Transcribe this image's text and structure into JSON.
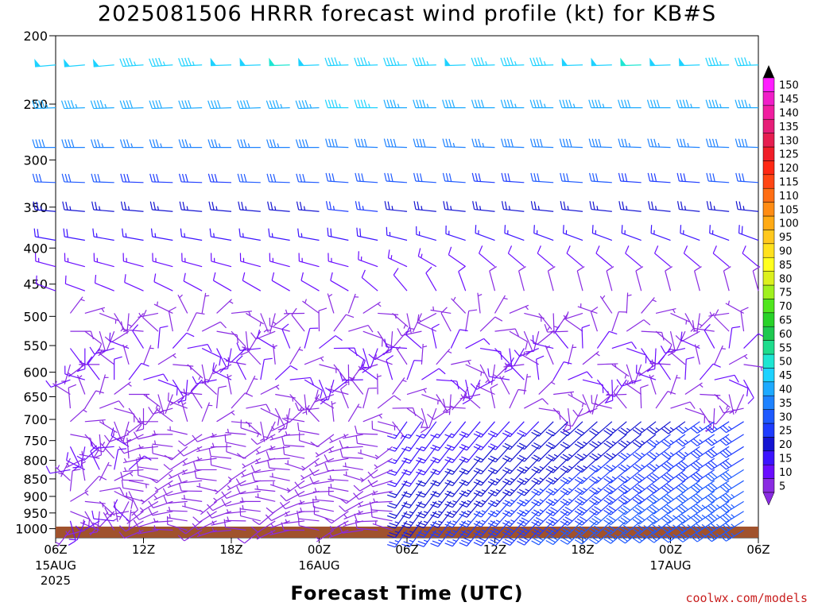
{
  "title": "2025081506 HRRR forecast wind profile (kt) for KB#S",
  "credit": "coolwx.com/models",
  "chart_data": {
    "type": "wind_barb_time_height",
    "xlabel": "Forecast Time (UTC)",
    "ylabel": "",
    "x_range_hours": [
      0,
      48
    ],
    "x_ticks": [
      {
        "hour": 0,
        "label": "06Z",
        "date": "15AUG",
        "year": "2025"
      },
      {
        "hour": 6,
        "label": "12Z"
      },
      {
        "hour": 12,
        "label": "18Z"
      },
      {
        "hour": 18,
        "label": "00Z",
        "date": "16AUG"
      },
      {
        "hour": 24,
        "label": "06Z"
      },
      {
        "hour": 30,
        "label": "12Z"
      },
      {
        "hour": 36,
        "label": "18Z"
      },
      {
        "hour": 42,
        "label": "00Z",
        "date": "17AUG"
      },
      {
        "hour": 48,
        "label": "06Z"
      }
    ],
    "y_ticks_hpa": [
      200,
      250,
      300,
      350,
      400,
      450,
      500,
      550,
      600,
      650,
      700,
      750,
      800,
      850,
      900,
      950,
      1000
    ],
    "y_range_hpa": [
      200,
      1030
    ],
    "y_scale": "log",
    "colorbar": {
      "labels": [
        5,
        10,
        15,
        20,
        25,
        30,
        35,
        40,
        45,
        50,
        55,
        60,
        65,
        70,
        75,
        80,
        85,
        90,
        95,
        100,
        105,
        110,
        115,
        120,
        125,
        130,
        135,
        140,
        145,
        150
      ],
      "colors": [
        "#8a2be2",
        "#6a0dff",
        "#3c14ff",
        "#1414d2",
        "#1e3cff",
        "#1e5aff",
        "#1e82ff",
        "#1eaaff",
        "#1ed2ff",
        "#1ee6d2",
        "#1edc8c",
        "#1ec850",
        "#28d228",
        "#50e61e",
        "#a0f01e",
        "#dcf01e",
        "#ffff1e",
        "#ffe11e",
        "#ffc81e",
        "#ffaa14",
        "#ff8c14",
        "#ff6e14",
        "#ff4614",
        "#ff2814",
        "#f01e28",
        "#e61e50",
        "#e61e78",
        "#f01ea0",
        "#f01ec8",
        "#ff1eff"
      ]
    },
    "ground_color": "#a0522d",
    "series": [
      {
        "level_hpa": 220,
        "speeds_kt": [
          48,
          49,
          48,
          47,
          46,
          47,
          48,
          49,
          50,
          48,
          47,
          46,
          45,
          47,
          48,
          47,
          46,
          47,
          48,
          49,
          50,
          49,
          48,
          47,
          46
        ],
        "dirs_deg": [
          265,
          265,
          265,
          266,
          266,
          267,
          268,
          268,
          268,
          268,
          268,
          268,
          268,
          268,
          268,
          268,
          268,
          268,
          268,
          268,
          268,
          268,
          268,
          268,
          268
        ]
      },
      {
        "level_hpa": 253,
        "speeds_kt": [
          44,
          44,
          43,
          42,
          42,
          41,
          41,
          42,
          43,
          44,
          45,
          45,
          44,
          43,
          42,
          42,
          43,
          43,
          44,
          43,
          42,
          42,
          43,
          43,
          44
        ],
        "dirs_deg": [
          268,
          268,
          268,
          268,
          268,
          268,
          268,
          268,
          268,
          268,
          270,
          270,
          270,
          270,
          270,
          270,
          270,
          270,
          270,
          270,
          270,
          270,
          270,
          270,
          270
        ]
      },
      {
        "level_hpa": 288,
        "speeds_kt": [
          38,
          38,
          37,
          37,
          37,
          37,
          36,
          36,
          37,
          38,
          39,
          39,
          38,
          38,
          37,
          37,
          38,
          38,
          38,
          38,
          37,
          37,
          37,
          38,
          38
        ],
        "dirs_deg": [
          270,
          270,
          270,
          270,
          270,
          270,
          270,
          270,
          270,
          270,
          272,
          272,
          272,
          272,
          272,
          272,
          272,
          272,
          272,
          272,
          272,
          272,
          272,
          272,
          272
        ]
      },
      {
        "level_hpa": 323,
        "speeds_kt": [
          30,
          30,
          30,
          29,
          29,
          29,
          29,
          30,
          30,
          31,
          31,
          30,
          30,
          30,
          30,
          29,
          29,
          30,
          30,
          30,
          29,
          29,
          29,
          30,
          30
        ],
        "dirs_deg": [
          272,
          272,
          272,
          272,
          272,
          272,
          272,
          272,
          272,
          272,
          274,
          274,
          274,
          274,
          274,
          274,
          274,
          274,
          274,
          274,
          274,
          274,
          274,
          274,
          274
        ]
      },
      {
        "level_hpa": 355,
        "speeds_kt": [
          24,
          24,
          24,
          24,
          23,
          23,
          23,
          23,
          24,
          24,
          25,
          25,
          24,
          24,
          24,
          24,
          23,
          23,
          24,
          24,
          24,
          24,
          23,
          23,
          24
        ],
        "dirs_deg": [
          275,
          275,
          275,
          275,
          275,
          275,
          275,
          275,
          275,
          275,
          276,
          276,
          276,
          276,
          276,
          276,
          276,
          276,
          276,
          276,
          276,
          276,
          276,
          276,
          276
        ]
      },
      {
        "level_hpa": 390,
        "speeds_kt": [
          18,
          18,
          17,
          17,
          17,
          17,
          16,
          16,
          17,
          17,
          18,
          18,
          17,
          17,
          17,
          17,
          16,
          16,
          17,
          17,
          17,
          17,
          17,
          17,
          18
        ],
        "dirs_deg": [
          280,
          280,
          280,
          280,
          280,
          280,
          280,
          280,
          280,
          280,
          282,
          282,
          284,
          286,
          288,
          290,
          290,
          290,
          290,
          290,
          290,
          290,
          290,
          290,
          290
        ]
      },
      {
        "level_hpa": 425,
        "speeds_kt": [
          14,
          14,
          14,
          13,
          13,
          13,
          13,
          13,
          13,
          14,
          14,
          14,
          13,
          13,
          12,
          12,
          12,
          12,
          12,
          12,
          12,
          12,
          12,
          12,
          12
        ],
        "dirs_deg": [
          285,
          285,
          285,
          285,
          285,
          285,
          285,
          285,
          285,
          285,
          285,
          290,
          295,
          300,
          305,
          310,
          310,
          310,
          310,
          310,
          310,
          310,
          310,
          310,
          310
        ]
      },
      {
        "level_hpa": 460,
        "speeds_kt": [
          11,
          11,
          11,
          10,
          10,
          10,
          10,
          10,
          10,
          10,
          10,
          10,
          10,
          10,
          10,
          9,
          9,
          9,
          9,
          9,
          9,
          9,
          9,
          9,
          9
        ],
        "dirs_deg": [
          290,
          290,
          292,
          294,
          296,
          298,
          300,
          300,
          300,
          300,
          300,
          310,
          320,
          330,
          340,
          345,
          345,
          345,
          345,
          345,
          345,
          345,
          345,
          345,
          345
        ]
      }
    ]
  }
}
